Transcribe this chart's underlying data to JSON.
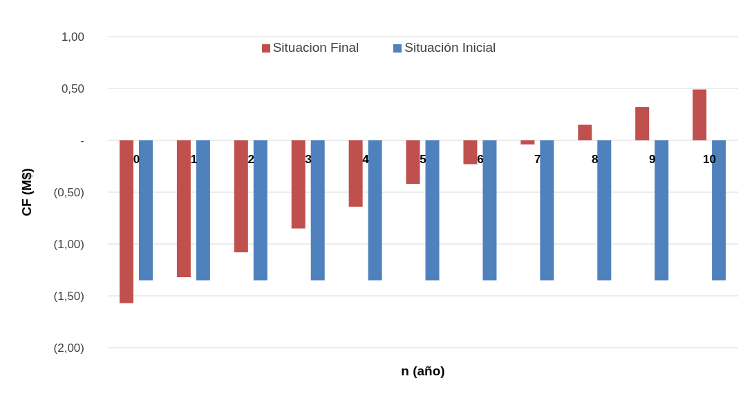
{
  "chart_data": {
    "type": "bar",
    "xlabel": "n (año)",
    "ylabel": "CF (M$)",
    "categories": [
      "0",
      "1",
      "2",
      "3",
      "4",
      "5",
      "6",
      "7",
      "8",
      "9",
      "10"
    ],
    "series": [
      {
        "name": "Situacion Final",
        "color": "#c0504d",
        "values": [
          -1.57,
          -1.32,
          -1.08,
          -0.85,
          -0.64,
          -0.42,
          -0.23,
          -0.04,
          0.15,
          0.32,
          0.49
        ]
      },
      {
        "name": "Situación Inicial",
        "color": "#4f81bd",
        "values": [
          -1.35,
          -1.35,
          -1.35,
          -1.35,
          -1.35,
          -1.35,
          -1.35,
          -1.35,
          -1.35,
          -1.35,
          -1.35
        ]
      }
    ],
    "ylim": [
      -2,
      1
    ],
    "yticks": [
      {
        "value": -2,
        "label": "(2,00)"
      },
      {
        "value": -1.5,
        "label": "(1,50)"
      },
      {
        "value": -1,
        "label": "(1,00)"
      },
      {
        "value": -0.5,
        "label": "(0,50)"
      },
      {
        "value": 0,
        "label": "-"
      },
      {
        "value": 0.5,
        "label": "0,50"
      },
      {
        "value": 1,
        "label": "1,00"
      }
    ],
    "grid": "y",
    "legend": "top"
  }
}
